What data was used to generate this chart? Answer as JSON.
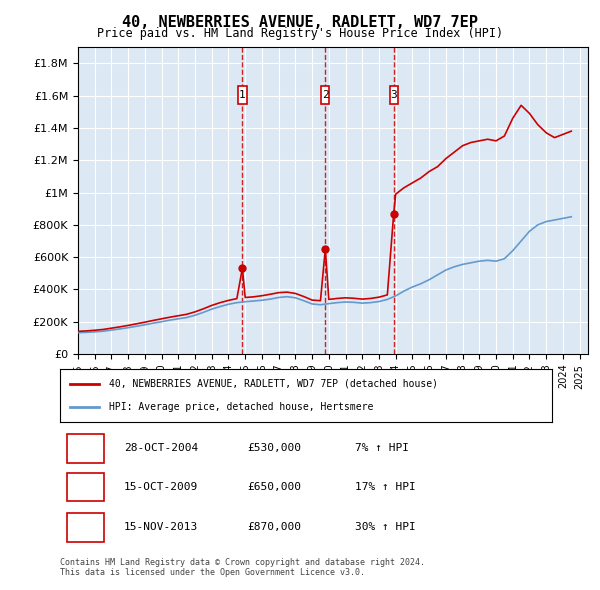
{
  "title": "40, NEWBERRIES AVENUE, RADLETT, WD7 7EP",
  "subtitle": "Price paid vs. HM Land Registry's House Price Index (HPI)",
  "background_color": "#dce9f5",
  "plot_bg_color": "#dce9f5",
  "ylim": [
    0,
    1900000
  ],
  "yticks": [
    0,
    200000,
    400000,
    600000,
    800000,
    1000000,
    1200000,
    1400000,
    1600000,
    1800000
  ],
  "ytick_labels": [
    "£0",
    "£200K",
    "£400K",
    "£600K",
    "£800K",
    "£1M",
    "£1.2M",
    "£1.4M",
    "£1.6M",
    "£1.8M"
  ],
  "xlim_start": 1995,
  "xlim_end": 2025.5,
  "xtick_years": [
    1995,
    1996,
    1997,
    1998,
    1999,
    2000,
    2001,
    2002,
    2003,
    2004,
    2005,
    2006,
    2007,
    2008,
    2009,
    2010,
    2011,
    2012,
    2013,
    2014,
    2015,
    2016,
    2017,
    2018,
    2019,
    2020,
    2021,
    2022,
    2023,
    2024,
    2025
  ],
  "sale_dates": [
    2004.83,
    2009.79,
    2013.88
  ],
  "sale_prices": [
    530000,
    650000,
    870000
  ],
  "sale_labels": [
    "1",
    "2",
    "3"
  ],
  "legend_red_label": "40, NEWBERRIES AVENUE, RADLETT, WD7 7EP (detached house)",
  "legend_blue_label": "HPI: Average price, detached house, Hertsmere",
  "table_data": [
    [
      "1",
      "28-OCT-2004",
      "£530,000",
      "7% ↑ HPI"
    ],
    [
      "2",
      "15-OCT-2009",
      "£650,000",
      "17% ↑ HPI"
    ],
    [
      "3",
      "15-NOV-2013",
      "£870,000",
      "30% ↑ HPI"
    ]
  ],
  "footer": "Contains HM Land Registry data © Crown copyright and database right 2024.\nThis data is licensed under the Open Government Licence v3.0.",
  "red_color": "#cc0000",
  "blue_color": "#6699cc",
  "hpi_x": [
    1995.0,
    1995.5,
    1996.0,
    1996.5,
    1997.0,
    1997.5,
    1998.0,
    1998.5,
    1999.0,
    1999.5,
    2000.0,
    2000.5,
    2001.0,
    2001.5,
    2002.0,
    2002.5,
    2003.0,
    2003.5,
    2004.0,
    2004.5,
    2005.0,
    2005.5,
    2006.0,
    2006.5,
    2007.0,
    2007.5,
    2008.0,
    2008.5,
    2009.0,
    2009.5,
    2010.0,
    2010.5,
    2011.0,
    2011.5,
    2012.0,
    2012.5,
    2013.0,
    2013.5,
    2014.0,
    2014.5,
    2015.0,
    2015.5,
    2016.0,
    2016.5,
    2017.0,
    2017.5,
    2018.0,
    2018.5,
    2019.0,
    2019.5,
    2020.0,
    2020.5,
    2021.0,
    2021.5,
    2022.0,
    2022.5,
    2023.0,
    2023.5,
    2024.0,
    2024.5
  ],
  "hpi_y": [
    132000,
    134000,
    137000,
    141000,
    148000,
    155000,
    163000,
    172000,
    181000,
    191000,
    200000,
    210000,
    218000,
    226000,
    240000,
    258000,
    278000,
    294000,
    308000,
    318000,
    324000,
    328000,
    333000,
    340000,
    350000,
    355000,
    348000,
    330000,
    310000,
    305000,
    312000,
    318000,
    322000,
    320000,
    315000,
    318000,
    325000,
    338000,
    360000,
    390000,
    415000,
    435000,
    460000,
    490000,
    520000,
    540000,
    555000,
    565000,
    575000,
    580000,
    575000,
    590000,
    640000,
    700000,
    760000,
    800000,
    820000,
    830000,
    840000,
    850000
  ],
  "red_x": [
    1995.0,
    1995.5,
    1996.0,
    1996.5,
    1997.0,
    1997.5,
    1998.0,
    1998.5,
    1999.0,
    1999.5,
    2000.0,
    2000.5,
    2001.0,
    2001.5,
    2002.0,
    2002.5,
    2003.0,
    2003.5,
    2004.0,
    2004.5,
    2004.83,
    2005.0,
    2005.5,
    2006.0,
    2006.5,
    2007.0,
    2007.5,
    2008.0,
    2008.5,
    2009.0,
    2009.5,
    2009.79,
    2010.0,
    2010.5,
    2011.0,
    2011.5,
    2012.0,
    2012.5,
    2013.0,
    2013.5,
    2013.88,
    2014.0,
    2014.5,
    2015.0,
    2015.5,
    2016.0,
    2016.5,
    2017.0,
    2017.5,
    2018.0,
    2018.5,
    2019.0,
    2019.5,
    2020.0,
    2020.5,
    2021.0,
    2021.5,
    2022.0,
    2022.5,
    2023.0,
    2023.5,
    2024.0,
    2024.5
  ],
  "red_y": [
    140000,
    143000,
    147000,
    152000,
    160000,
    168000,
    177000,
    187000,
    197000,
    208000,
    218000,
    228000,
    237000,
    246000,
    261000,
    280000,
    301000,
    318000,
    332000,
    343000,
    530000,
    350000,
    354000,
    361000,
    370000,
    380000,
    383000,
    375000,
    356000,
    334000,
    330000,
    650000,
    338000,
    344000,
    348000,
    345000,
    340000,
    344000,
    352000,
    366000,
    870000,
    990000,
    1030000,
    1060000,
    1090000,
    1130000,
    1160000,
    1210000,
    1250000,
    1290000,
    1310000,
    1320000,
    1330000,
    1320000,
    1350000,
    1460000,
    1540000,
    1490000,
    1420000,
    1370000,
    1340000,
    1360000,
    1380000
  ]
}
